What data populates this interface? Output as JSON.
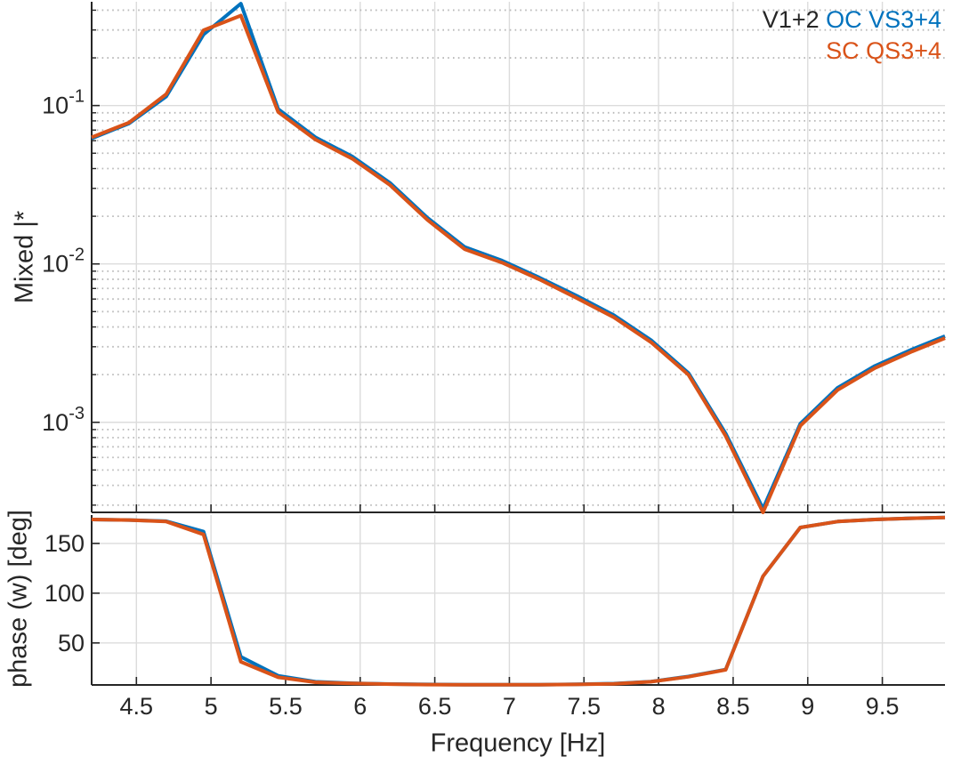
{
  "figure": {
    "legend": {
      "prefix": "V1+2",
      "entries": [
        {
          "label": "OC VS3+4",
          "color": "#0072BD"
        },
        {
          "label": "SC QS3+4",
          "color": "#D95319"
        }
      ]
    },
    "colors": {
      "series_blue": "#0072BD",
      "series_orange": "#D95319",
      "axis": "#262626",
      "grid_major": "#DCDCDC",
      "grid_minor": "#B8B8B8",
      "text": "#262626",
      "background": "#FFFFFF"
    }
  },
  "chart_data": [
    {
      "type": "line",
      "panel": "magnitude",
      "ylabel": "Mixed |*",
      "yscale": "log",
      "xlim": [
        4.2,
        9.92
      ],
      "ylim": [
        0.00027,
        0.452
      ],
      "xticks": [
        4.5,
        5,
        5.5,
        6,
        6.5,
        7,
        7.5,
        8,
        8.5,
        9,
        9.5
      ],
      "xtick_labels": [
        "4.5",
        "5",
        "5.5",
        "6",
        "6.5",
        "7",
        "7.5",
        "8",
        "8.5",
        "9",
        "9.5"
      ],
      "ytick_mantissa": "10",
      "ytick_exponents": [
        -1,
        -2,
        -3
      ],
      "grid": "major-solid minor-dotted",
      "x": [
        4.2,
        4.45,
        4.7,
        4.95,
        5.2,
        5.45,
        5.7,
        5.95,
        6.2,
        6.45,
        6.7,
        6.95,
        7.2,
        7.45,
        7.7,
        7.95,
        8.2,
        8.45,
        8.7,
        8.95,
        9.2,
        9.45,
        9.7,
        9.92
      ],
      "series": [
        {
          "name": "OC VS3+4",
          "color": "#0072BD",
          "values": [
            0.062,
            0.077,
            0.114,
            0.281,
            0.44,
            0.095,
            0.063,
            0.0475,
            0.0325,
            0.0196,
            0.0128,
            0.0105,
            0.0082,
            0.0063,
            0.00475,
            0.0033,
            0.00205,
            0.00085,
            0.000285,
            0.00098,
            0.00165,
            0.00227,
            0.00289,
            0.0035
          ]
        },
        {
          "name": "SC QS3+4",
          "color": "#D95319",
          "values": [
            0.063,
            0.078,
            0.118,
            0.299,
            0.37,
            0.091,
            0.061,
            0.046,
            0.0315,
            0.019,
            0.0124,
            0.0102,
            0.008,
            0.0061,
            0.0046,
            0.0032,
            0.002,
            0.00082,
            0.00027,
            0.00095,
            0.0016,
            0.0022,
            0.0028,
            0.0034
          ]
        }
      ]
    },
    {
      "type": "line",
      "panel": "phase",
      "xlabel": "Frequency [Hz]",
      "ylabel": "phase (w) [deg]",
      "yscale": "linear",
      "xlim": [
        4.2,
        9.92
      ],
      "ylim": [
        7.8,
        178.5
      ],
      "xticks": [
        4.5,
        5,
        5.5,
        6,
        6.5,
        7,
        7.5,
        8,
        8.5,
        9,
        9.5
      ],
      "xtick_labels": [
        "4.5",
        "5",
        "5.5",
        "6",
        "6.5",
        "7",
        "7.5",
        "8",
        "8.5",
        "9",
        "9.5"
      ],
      "yticks": [
        50,
        100,
        150
      ],
      "ytick_labels": [
        "50",
        "100",
        "150"
      ],
      "grid": "major-solid",
      "x": [
        4.2,
        4.45,
        4.7,
        4.95,
        5.2,
        5.45,
        5.7,
        5.95,
        6.2,
        6.45,
        6.7,
        6.95,
        7.2,
        7.45,
        7.7,
        7.95,
        8.2,
        8.45,
        8.7,
        8.95,
        9.2,
        9.45,
        9.7,
        9.92
      ],
      "series": [
        {
          "name": "OC VS3+4",
          "color": "#0072BD",
          "values": [
            174,
            173.5,
            172.3,
            162,
            36,
            17,
            11,
            9.5,
            8.7,
            8.3,
            8.1,
            8.1,
            8.1,
            8.4,
            9.1,
            11.2,
            16.3,
            23.3,
            117,
            166,
            172,
            174,
            175.3,
            176
          ]
        },
        {
          "name": "SC QS3+4",
          "color": "#D95319",
          "values": [
            174,
            173.5,
            172,
            159,
            31,
            15.5,
            10.5,
            9.3,
            8.6,
            8.2,
            8,
            8,
            8,
            8.3,
            9,
            11,
            16,
            23,
            117,
            166,
            172,
            174,
            175.3,
            176
          ]
        }
      ]
    }
  ]
}
